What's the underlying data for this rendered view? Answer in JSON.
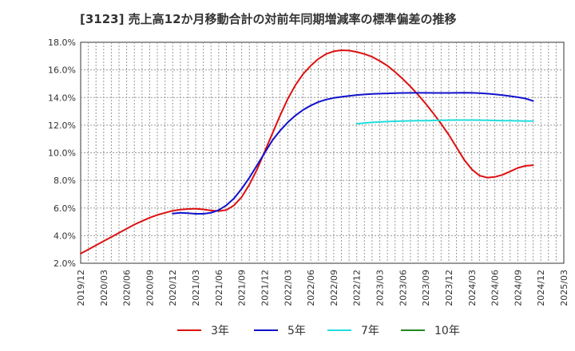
{
  "chart_data": {
    "type": "line",
    "title": "[3123]  売上高12か月移動合計の対前年同期増減率の標準偏差の推移",
    "xlabel": "",
    "ylabel": "",
    "ylim": [
      2.0,
      18.0
    ],
    "y_ticks": [
      "2.0%",
      "4.0%",
      "6.0%",
      "8.0%",
      "10.0%",
      "12.0%",
      "14.0%",
      "16.0%",
      "18.0%"
    ],
    "y_tick_values": [
      2,
      4,
      6,
      8,
      10,
      12,
      14,
      16,
      18
    ],
    "x_ticks": [
      "2019/12",
      "2020/03",
      "2020/06",
      "2020/09",
      "2020/12",
      "2021/03",
      "2021/06",
      "2021/09",
      "2021/12",
      "2022/03",
      "2022/06",
      "2022/09",
      "2022/12",
      "2023/03",
      "2023/06",
      "2023/09",
      "2023/12",
      "2024/03",
      "2024/06",
      "2024/09",
      "2024/12",
      "2025/03"
    ],
    "grid": true,
    "legend_position": "bottom",
    "series": [
      {
        "name": "3年",
        "color": "#dd1111",
        "points": [
          [
            "2019/12",
            2.7
          ],
          [
            "2020/01",
            3.0
          ],
          [
            "2020/02",
            3.3
          ],
          [
            "2020/03",
            3.6
          ],
          [
            "2020/04",
            3.9
          ],
          [
            "2020/05",
            4.2
          ],
          [
            "2020/06",
            4.5
          ],
          [
            "2020/07",
            4.8
          ],
          [
            "2020/08",
            5.05
          ],
          [
            "2020/09",
            5.3
          ],
          [
            "2020/10",
            5.5
          ],
          [
            "2020/11",
            5.65
          ],
          [
            "2020/12",
            5.8
          ],
          [
            "2021/01",
            5.88
          ],
          [
            "2021/02",
            5.93
          ],
          [
            "2021/03",
            5.95
          ],
          [
            "2021/04",
            5.9
          ],
          [
            "2021/05",
            5.82
          ],
          [
            "2021/06",
            5.78
          ],
          [
            "2021/07",
            5.85
          ],
          [
            "2021/08",
            6.2
          ],
          [
            "2021/09",
            6.8
          ],
          [
            "2021/10",
            7.7
          ],
          [
            "2021/11",
            8.8
          ],
          [
            "2021/12",
            10.1
          ],
          [
            "2022/01",
            11.4
          ],
          [
            "2022/02",
            12.7
          ],
          [
            "2022/03",
            13.9
          ],
          [
            "2022/04",
            14.9
          ],
          [
            "2022/05",
            15.7
          ],
          [
            "2022/06",
            16.3
          ],
          [
            "2022/07",
            16.8
          ],
          [
            "2022/08",
            17.15
          ],
          [
            "2022/09",
            17.35
          ],
          [
            "2022/10",
            17.42
          ],
          [
            "2022/11",
            17.4
          ],
          [
            "2022/12",
            17.3
          ],
          [
            "2023/01",
            17.15
          ],
          [
            "2023/02",
            16.95
          ],
          [
            "2023/03",
            16.65
          ],
          [
            "2023/04",
            16.3
          ],
          [
            "2023/05",
            15.85
          ],
          [
            "2023/06",
            15.35
          ],
          [
            "2023/07",
            14.8
          ],
          [
            "2023/08",
            14.2
          ],
          [
            "2023/09",
            13.55
          ],
          [
            "2023/10",
            12.85
          ],
          [
            "2023/11",
            12.1
          ],
          [
            "2023/12",
            11.3
          ],
          [
            "2024/01",
            10.4
          ],
          [
            "2024/02",
            9.5
          ],
          [
            "2024/03",
            8.8
          ],
          [
            "2024/04",
            8.35
          ],
          [
            "2024/05",
            8.2
          ],
          [
            "2024/06",
            8.25
          ],
          [
            "2024/07",
            8.4
          ],
          [
            "2024/08",
            8.65
          ],
          [
            "2024/09",
            8.9
          ],
          [
            "2024/10",
            9.05
          ],
          [
            "2024/11",
            9.1
          ]
        ]
      },
      {
        "name": "5年",
        "color": "#1111cc",
        "points": [
          [
            "2020/12",
            5.6
          ],
          [
            "2021/01",
            5.65
          ],
          [
            "2021/02",
            5.62
          ],
          [
            "2021/03",
            5.58
          ],
          [
            "2021/04",
            5.58
          ],
          [
            "2021/05",
            5.65
          ],
          [
            "2021/06",
            5.85
          ],
          [
            "2021/07",
            6.2
          ],
          [
            "2021/08",
            6.7
          ],
          [
            "2021/09",
            7.4
          ],
          [
            "2021/10",
            8.2
          ],
          [
            "2021/11",
            9.1
          ],
          [
            "2021/12",
            10.0
          ],
          [
            "2022/01",
            10.9
          ],
          [
            "2022/02",
            11.6
          ],
          [
            "2022/03",
            12.2
          ],
          [
            "2022/04",
            12.7
          ],
          [
            "2022/05",
            13.1
          ],
          [
            "2022/06",
            13.42
          ],
          [
            "2022/07",
            13.68
          ],
          [
            "2022/08",
            13.85
          ],
          [
            "2022/09",
            13.97
          ],
          [
            "2022/10",
            14.05
          ],
          [
            "2022/11",
            14.12
          ],
          [
            "2022/12",
            14.18
          ],
          [
            "2023/01",
            14.22
          ],
          [
            "2023/02",
            14.26
          ],
          [
            "2023/03",
            14.28
          ],
          [
            "2023/04",
            14.3
          ],
          [
            "2023/05",
            14.32
          ],
          [
            "2023/06",
            14.33
          ],
          [
            "2023/07",
            14.34
          ],
          [
            "2023/08",
            14.34
          ],
          [
            "2023/09",
            14.34
          ],
          [
            "2023/10",
            14.33
          ],
          [
            "2023/11",
            14.33
          ],
          [
            "2023/12",
            14.33
          ],
          [
            "2024/01",
            14.34
          ],
          [
            "2024/02",
            14.35
          ],
          [
            "2024/03",
            14.34
          ],
          [
            "2024/04",
            14.32
          ],
          [
            "2024/05",
            14.28
          ],
          [
            "2024/06",
            14.23
          ],
          [
            "2024/07",
            14.17
          ],
          [
            "2024/08",
            14.1
          ],
          [
            "2024/09",
            14.02
          ],
          [
            "2024/10",
            13.93
          ],
          [
            "2024/11",
            13.75
          ]
        ]
      },
      {
        "name": "7年",
        "color": "#22dddd",
        "points": [
          [
            "2022/12",
            12.1
          ],
          [
            "2023/01",
            12.15
          ],
          [
            "2023/02",
            12.2
          ],
          [
            "2023/03",
            12.23
          ],
          [
            "2023/04",
            12.26
          ],
          [
            "2023/05",
            12.28
          ],
          [
            "2023/06",
            12.3
          ],
          [
            "2023/07",
            12.31
          ],
          [
            "2023/08",
            12.32
          ],
          [
            "2023/09",
            12.33
          ],
          [
            "2023/10",
            12.34
          ],
          [
            "2023/11",
            12.35
          ],
          [
            "2023/12",
            12.36
          ],
          [
            "2024/01",
            12.37
          ],
          [
            "2024/02",
            12.37
          ],
          [
            "2024/03",
            12.37
          ],
          [
            "2024/04",
            12.36
          ],
          [
            "2024/05",
            12.35
          ],
          [
            "2024/06",
            12.34
          ],
          [
            "2024/07",
            12.33
          ],
          [
            "2024/08",
            12.32
          ],
          [
            "2024/09",
            12.31
          ],
          [
            "2024/10",
            12.3
          ],
          [
            "2024/11",
            12.3
          ]
        ]
      },
      {
        "name": "10年",
        "color": "#228822",
        "points": []
      }
    ]
  }
}
